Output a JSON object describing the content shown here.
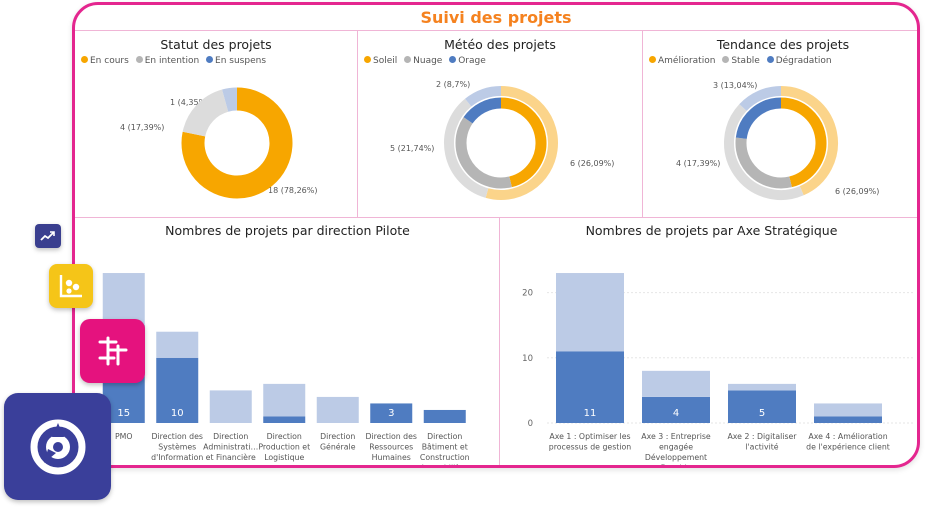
{
  "dashboard": {
    "title": "Suivi des projets"
  },
  "colors": {
    "accent": "#e4268f",
    "title": "#f5821f",
    "orange": "#f7a600",
    "orange_light": "#fbd48a",
    "gray": "#b5b5b5",
    "gray_light": "#dcdcdc",
    "blue": "#4f7cc1",
    "blue_light": "#bccbe6"
  },
  "donuts": [
    {
      "title": "Statut des projets",
      "legend": [
        {
          "label": "En cours",
          "color": "#f7a600"
        },
        {
          "label": "En intention",
          "color": "#b5b5b5"
        },
        {
          "label": "En suspens",
          "color": "#4f7cc1"
        }
      ],
      "labels": [
        "1 (4,35%)",
        "4 (17,39%)",
        "18 (78,26%)"
      ]
    },
    {
      "title": "Météo des projets",
      "legend": [
        {
          "label": "Soleil",
          "color": "#f7a600"
        },
        {
          "label": "Nuage",
          "color": "#b5b5b5"
        },
        {
          "label": "Orage",
          "color": "#4f7cc1"
        }
      ],
      "labels": [
        "2 (8,7%)",
        "5 (21,74%)",
        "6 (26,09%)"
      ]
    },
    {
      "title": "Tendance des projets",
      "legend": [
        {
          "label": "Amélioration",
          "color": "#f7a600"
        },
        {
          "label": "Stable",
          "color": "#b5b5b5"
        },
        {
          "label": "Dégradation",
          "color": "#4f7cc1"
        }
      ],
      "labels": [
        "3 (13,04%)",
        "4 (17,39%)",
        "6 (26,09%)"
      ]
    }
  ],
  "chart_data": [
    {
      "type": "pie",
      "title": "Statut des projets",
      "categories": [
        "En cours",
        "En intention",
        "En suspens"
      ],
      "values": [
        18,
        4,
        1
      ],
      "percent_labels": [
        "78,26%",
        "17,39%",
        "4,35%"
      ]
    },
    {
      "type": "pie",
      "title": "Météo des projets",
      "rings": [
        {
          "ring": "outer",
          "categories": [
            "Soleil",
            "Nuage",
            "Orage"
          ],
          "values": [
            12.5,
            8,
            2.5
          ]
        },
        {
          "ring": "inner",
          "categories": [
            "Soleil",
            "Nuage",
            "Orage"
          ],
          "values": [
            6,
            5,
            2
          ]
        }
      ]
    },
    {
      "type": "pie",
      "title": "Tendance des projets",
      "rings": [
        {
          "ring": "outer",
          "categories": [
            "Amélioration",
            "Stable",
            "Dégradation"
          ],
          "values": [
            10,
            10,
            3
          ]
        },
        {
          "ring": "inner",
          "categories": [
            "Amélioration",
            "Stable",
            "Dégradation"
          ],
          "values": [
            6,
            4,
            3
          ]
        }
      ]
    },
    {
      "type": "bar",
      "title": "Nombres de projets par direction Pilote",
      "categories": [
        [
          "PMO"
        ],
        [
          "Direction des",
          "Systèmes",
          "d'Information"
        ],
        [
          "Direction",
          "Administrati…",
          "et Financière"
        ],
        [
          "Direction",
          "Production et",
          "Logistique"
        ],
        [
          "Direction",
          "Générale"
        ],
        [
          "Direction des",
          "Ressources",
          "Humaines"
        ],
        [
          "Direction",
          "Bâtiment et",
          "Construction",
          "Immobilière"
        ]
      ],
      "series": [
        {
          "values": [
            15,
            10,
            0,
            1,
            0,
            3,
            2
          ],
          "labels": [
            "15",
            "10",
            "",
            "",
            "",
            "3",
            ""
          ],
          "color": "#4f7cc1"
        },
        {
          "values": [
            8,
            4,
            5,
            5,
            4,
            0,
            0
          ],
          "color": "#bccbe6"
        }
      ],
      "ylim": [
        0,
        25
      ]
    },
    {
      "type": "bar",
      "title": "Nombres de projets par Axe Stratégique",
      "categories": [
        [
          "Axe 1 : Optimiser les",
          "processus de gestion"
        ],
        [
          "Axe 3 : Entreprise",
          "engagée",
          "Développement",
          "Durable"
        ],
        [
          "Axe 2 : Digitaliser",
          "l'activité"
        ],
        [
          "Axe 4 : Amélioration",
          "de l'expérience client"
        ]
      ],
      "series": [
        {
          "values": [
            11,
            4,
            5,
            1
          ],
          "labels": [
            "11",
            "4",
            "5",
            ""
          ],
          "color": "#4f7cc1"
        },
        {
          "values": [
            12,
            4,
            1,
            2
          ],
          "color": "#bccbe6"
        }
      ],
      "yticks": [
        "0",
        "10",
        "20"
      ],
      "ylim": [
        0,
        25
      ]
    }
  ]
}
